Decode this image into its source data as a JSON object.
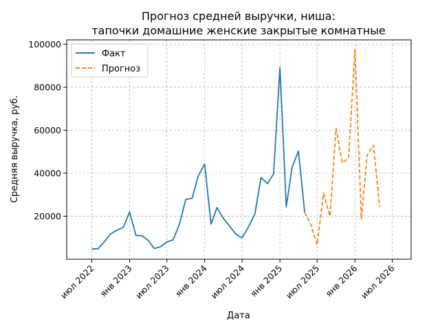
{
  "chart_data": {
    "type": "line",
    "title": "Прогноз средней выручки, ниша:",
    "subtitle": "тапочки домашние женские закрытые комнатные",
    "xlabel": "Дата",
    "ylabel": "Средняя выручка, руб.",
    "x_ticks": [
      "июл 2022",
      "янв 2023",
      "июл 2023",
      "янв 2024",
      "июл 2024",
      "янв 2025",
      "июл 2025",
      "янв 2026",
      "июл 2026"
    ],
    "y_ticks": [
      "20000",
      "40000",
      "60000",
      "80000",
      "100000"
    ],
    "ylim": [
      0,
      102000
    ],
    "grid": true,
    "legend_position": "top-left",
    "series": [
      {
        "name": "Факт",
        "color": "#1f77b4",
        "style": "solid",
        "points": [
          [
            "2022-07-01",
            4700
          ],
          [
            "2022-08-01",
            4900
          ],
          [
            "2022-09-01",
            8200
          ],
          [
            "2022-10-01",
            11800
          ],
          [
            "2022-11-01",
            13500
          ],
          [
            "2022-12-01",
            14800
          ],
          [
            "2023-01-01",
            22000
          ],
          [
            "2023-02-01",
            11000
          ],
          [
            "2023-03-01",
            11000
          ],
          [
            "2023-04-01",
            8800
          ],
          [
            "2023-05-01",
            5000
          ],
          [
            "2023-06-01",
            5800
          ],
          [
            "2023-07-01",
            8000
          ],
          [
            "2023-08-01",
            9000
          ],
          [
            "2023-09-01",
            16500
          ],
          [
            "2023-10-01",
            27800
          ],
          [
            "2023-11-01",
            28400
          ],
          [
            "2023-12-01",
            38800
          ],
          [
            "2024-01-01",
            44300
          ],
          [
            "2024-02-01",
            16300
          ],
          [
            "2024-03-01",
            24000
          ],
          [
            "2024-04-01",
            19000
          ],
          [
            "2024-05-01",
            15400
          ],
          [
            "2024-06-01",
            11600
          ],
          [
            "2024-07-01",
            9900
          ],
          [
            "2024-08-01",
            15000
          ],
          [
            "2024-09-01",
            21000
          ],
          [
            "2024-10-01",
            38000
          ],
          [
            "2024-11-01",
            35100
          ],
          [
            "2024-12-01",
            39600
          ],
          [
            "2025-01-01",
            89200
          ],
          [
            "2025-02-01",
            24300
          ],
          [
            "2025-03-01",
            42700
          ],
          [
            "2025-04-01",
            50300
          ],
          [
            "2025-05-01",
            21900
          ]
        ]
      },
      {
        "name": "Прогноз",
        "color": "#ff7f0e",
        "style": "dashed",
        "points": [
          [
            "2025-05-01",
            21900
          ],
          [
            "2025-06-01",
            16000
          ],
          [
            "2025-07-01",
            6700
          ],
          [
            "2025-08-01",
            30600
          ],
          [
            "2025-09-01",
            20000
          ],
          [
            "2025-10-01",
            60800
          ],
          [
            "2025-11-01",
            44700
          ],
          [
            "2025-12-01",
            47300
          ],
          [
            "2026-01-01",
            97600
          ],
          [
            "2026-02-01",
            18800
          ],
          [
            "2026-03-01",
            48300
          ],
          [
            "2026-04-01",
            53000
          ],
          [
            "2026-05-01",
            24300
          ]
        ]
      }
    ]
  }
}
